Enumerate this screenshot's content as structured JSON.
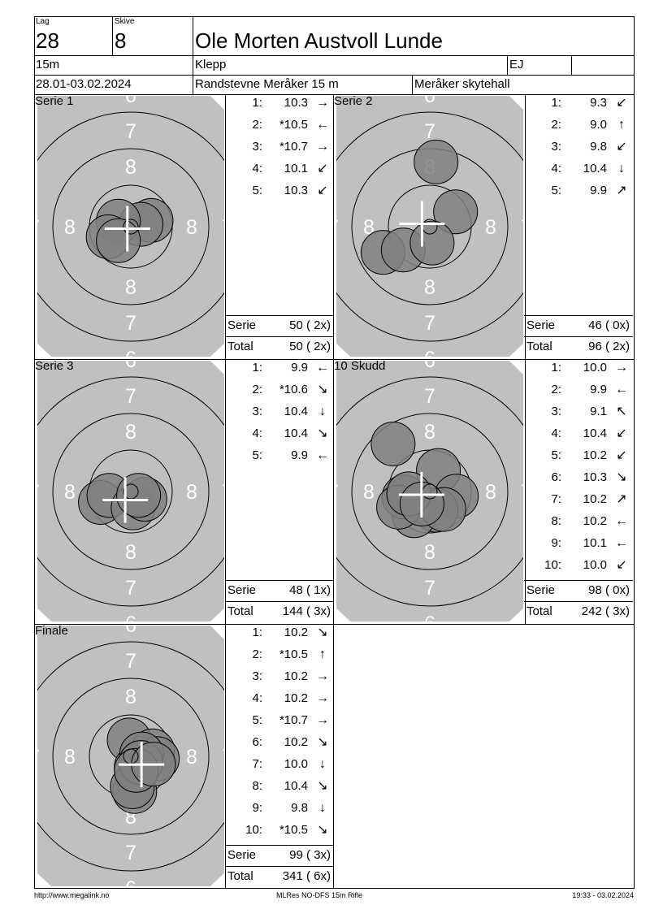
{
  "header": {
    "lag_label": "Lag",
    "lag": "28",
    "skive_label": "Skive",
    "skive": "8",
    "name": "Ole Morten Austvoll Lunde",
    "distance": "15m",
    "club": "Klepp",
    "class": "EJ",
    "date": "28.01-03.02.2024",
    "event": "Randstevne Meråker 15 m",
    "venue": "Meråker skytehall"
  },
  "colors": {
    "target": "#c0c0c0",
    "shot": "#808080",
    "ring": "#000000",
    "label": "#ffffff"
  },
  "target_labels": {
    "ring6": "6",
    "ring7": "7",
    "ring8": "8"
  },
  "panels": [
    {
      "title": "Serie 1",
      "shots": [
        {
          "x": 2.6,
          "y": 0.8
        },
        {
          "x": 1.3,
          "y": 0.3
        },
        {
          "x": -1.6,
          "y": 0.7
        },
        {
          "x": -2.9,
          "y": -1.3
        },
        {
          "x": -1.6,
          "y": -1.8
        }
      ],
      "scores": [
        {
          "n": "1:",
          "v": "10.3",
          "dir": "right"
        },
        {
          "n": "2:",
          "v": "*10.5",
          "dir": "left"
        },
        {
          "n": "3:",
          "v": "*10.7",
          "dir": "right"
        },
        {
          "n": "4:",
          "v": "10.1",
          "dir": "down-left"
        },
        {
          "n": "5:",
          "v": "10.3",
          "dir": "down-left"
        }
      ],
      "serie_label": "Serie",
      "serie": "50 ( 2x)",
      "total_label": "Total",
      "total": "50 ( 2x)"
    },
    {
      "title": "Serie 2",
      "shots": [
        {
          "x": 0.8,
          "y": 8.3
        },
        {
          "x": 3.3,
          "y": 1.9
        },
        {
          "x": -6.0,
          "y": -3.3
        },
        {
          "x": -3.4,
          "y": -3.0
        },
        {
          "x": 0.3,
          "y": -2.1
        }
      ],
      "scores": [
        {
          "n": "1:",
          "v": "9.3",
          "dir": "down-left"
        },
        {
          "n": "2:",
          "v": "9.0",
          "dir": "up"
        },
        {
          "n": "3:",
          "v": "9.8",
          "dir": "down-left"
        },
        {
          "n": "4:",
          "v": "10.4",
          "dir": "down"
        },
        {
          "n": "5:",
          "v": "9.9",
          "dir": "up-right"
        }
      ],
      "serie_label": "Serie",
      "serie": "46 ( 0x)",
      "total_label": "Total",
      "total": "96 ( 2x)"
    },
    {
      "title": "Serie 3",
      "shots": [
        {
          "x": -3.9,
          "y": -1.4
        },
        {
          "x": -2.8,
          "y": -0.5
        },
        {
          "x": 0.3,
          "y": -2.1
        },
        {
          "x": 1.8,
          "y": -1.0
        },
        {
          "x": 1.0,
          "y": -0.5
        }
      ],
      "scores": [
        {
          "n": "1:",
          "v": "9.9",
          "dir": "left"
        },
        {
          "n": "2:",
          "v": "*10.6",
          "dir": "down-right"
        },
        {
          "n": "3:",
          "v": "10.4",
          "dir": "down"
        },
        {
          "n": "4:",
          "v": "10.4",
          "dir": "down-right"
        },
        {
          "n": "5:",
          "v": "9.9",
          "dir": "left"
        }
      ],
      "serie_label": "Serie",
      "serie": "48 ( 1x)",
      "total_label": "Total",
      "total": "144 ( 3x)"
    },
    {
      "title": "10 Skudd",
      "shots": [
        {
          "x": -4.7,
          "y": 6.1
        },
        {
          "x": 1.1,
          "y": 2.7
        },
        {
          "x": 3.4,
          "y": -0.6
        },
        {
          "x": 0.8,
          "y": -2.4
        },
        {
          "x": -2.0,
          "y": -3.1
        },
        {
          "x": -3.3,
          "y": -0.7
        },
        {
          "x": -4.0,
          "y": -2.0
        },
        {
          "x": 1.8,
          "y": -2.3
        },
        {
          "x": -2.7,
          "y": -0.3
        },
        {
          "x": -1.0,
          "y": -1.6
        }
      ],
      "scores": [
        {
          "n": "1:",
          "v": "10.0",
          "dir": "right"
        },
        {
          "n": "2:",
          "v": "9.9",
          "dir": "left"
        },
        {
          "n": "3:",
          "v": "9.1",
          "dir": "up-left"
        },
        {
          "n": "4:",
          "v": "10.4",
          "dir": "down-left"
        },
        {
          "n": "5:",
          "v": "10.2",
          "dir": "down-left"
        },
        {
          "n": "6:",
          "v": "10.3",
          "dir": "down-right"
        },
        {
          "n": "7:",
          "v": "10.2",
          "dir": "up-right"
        },
        {
          "n": "8:",
          "v": "10.2",
          "dir": "left"
        },
        {
          "n": "9:",
          "v": "10.1",
          "dir": "left"
        },
        {
          "n": "10:",
          "v": "10.0",
          "dir": "down-left"
        }
      ],
      "serie_label": "Serie",
      "serie": "98 ( 0x)",
      "total_label": "Total",
      "total": "242 ( 3x)"
    },
    {
      "title": "Finale",
      "shots": [
        {
          "x": -0.2,
          "y": 2.1
        },
        {
          "x": 2.8,
          "y": 0.7
        },
        {
          "x": 3.4,
          "y": -0.3
        },
        {
          "x": 0.7,
          "y": -1.4
        },
        {
          "x": 0.5,
          "y": -4.5
        },
        {
          "x": 0.2,
          "y": -3.9
        },
        {
          "x": 1.4,
          "y": 0.3
        },
        {
          "x": 1.3,
          "y": -0.8
        },
        {
          "x": 0.7,
          "y": -1.8
        },
        {
          "x": 2.9,
          "y": -1.0
        }
      ],
      "scores": [
        {
          "n": "1:",
          "v": "10.2",
          "dir": "down-right"
        },
        {
          "n": "2:",
          "v": "*10.5",
          "dir": "up"
        },
        {
          "n": "3:",
          "v": "10.2",
          "dir": "right"
        },
        {
          "n": "4:",
          "v": "10.2",
          "dir": "right"
        },
        {
          "n": "5:",
          "v": "*10.7",
          "dir": "right"
        },
        {
          "n": "6:",
          "v": "10.2",
          "dir": "down-right"
        },
        {
          "n": "7:",
          "v": "10.0",
          "dir": "down"
        },
        {
          "n": "8:",
          "v": "10.4",
          "dir": "down-right"
        },
        {
          "n": "9:",
          "v": "9.8",
          "dir": "down"
        },
        {
          "n": "10:",
          "v": "*10.5",
          "dir": "down-right"
        }
      ],
      "serie_label": "Serie",
      "serie": "99 ( 3x)",
      "total_label": "Total",
      "total": "341 ( 6x)"
    }
  ],
  "footer": {
    "left": "http://www.megalink.no",
    "center": "MLRes NO-DFS 15m Rifle",
    "right": "19:33 - 03.02.2024"
  }
}
